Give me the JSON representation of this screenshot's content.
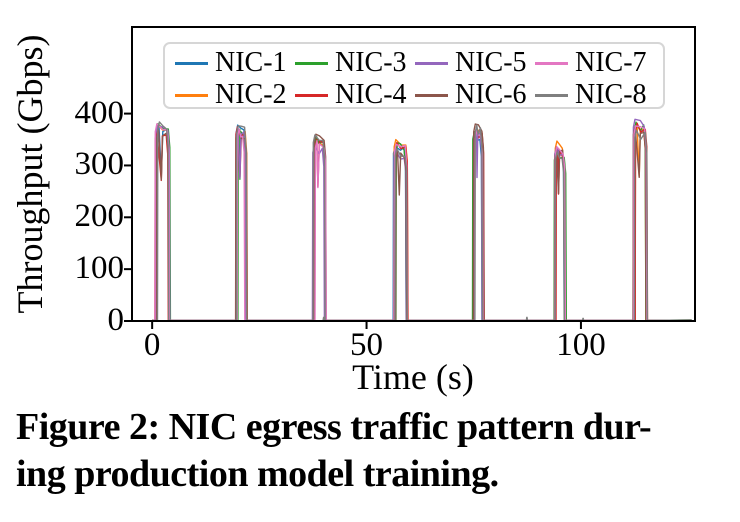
{
  "figure": {
    "caption_line1": "Figure 2: NIC egress traffic pattern dur-",
    "caption_line2": "ing production model training."
  },
  "chart_data": {
    "type": "line",
    "title": "",
    "xlabel": "Time (s)",
    "ylabel": "Throughput (Gbps)",
    "xlim": [
      -4.7,
      126.6
    ],
    "ylim": [
      0,
      567
    ],
    "xticks": [
      0,
      50,
      100
    ],
    "yticks": [
      0,
      100,
      200,
      300,
      400
    ],
    "grid": false,
    "legend_position": "upper center inside plot, 4 columns x 2 rows",
    "series": [
      {
        "name": "NIC-1",
        "color": "#1f77b4"
      },
      {
        "name": "NIC-2",
        "color": "#ff7f0e"
      },
      {
        "name": "NIC-3",
        "color": "#2ca02c"
      },
      {
        "name": "NIC-4",
        "color": "#d62728"
      },
      {
        "name": "NIC-5",
        "color": "#9467bd"
      },
      {
        "name": "NIC-6",
        "color": "#8c564b"
      },
      {
        "name": "NIC-7",
        "color": "#e377c2"
      },
      {
        "name": "NIC-8",
        "color": "#7f7f7f"
      }
    ],
    "pattern_note": "All 8 NIC series overlap almost exactly: throughput is ~0 Gbps between periodic bursts; each burst rises near-vertically to its peak and drops back to 0",
    "idle_gbps": 0,
    "bursts": [
      {
        "t_start": 0.6,
        "t_end": 4.0,
        "peak_gbps": 390
      },
      {
        "t_start": 19.3,
        "t_end": 21.9,
        "peak_gbps": 388
      },
      {
        "t_start": 37.3,
        "t_end": 40.3,
        "peak_gbps": 362
      },
      {
        "t_start": 56.2,
        "t_end": 59.4,
        "peak_gbps": 352
      },
      {
        "t_start": 74.6,
        "t_end": 77.2,
        "peak_gbps": 382
      },
      {
        "t_start": 93.5,
        "t_end": 96.3,
        "peak_gbps": 347
      },
      {
        "t_start": 112.1,
        "t_end": 115.4,
        "peak_gbps": 390
      }
    ],
    "blips": [
      {
        "t": 40.0,
        "gbps": 8
      },
      {
        "t": 87.4,
        "gbps": 8
      },
      {
        "t": 100.5,
        "gbps": 6
      }
    ]
  }
}
